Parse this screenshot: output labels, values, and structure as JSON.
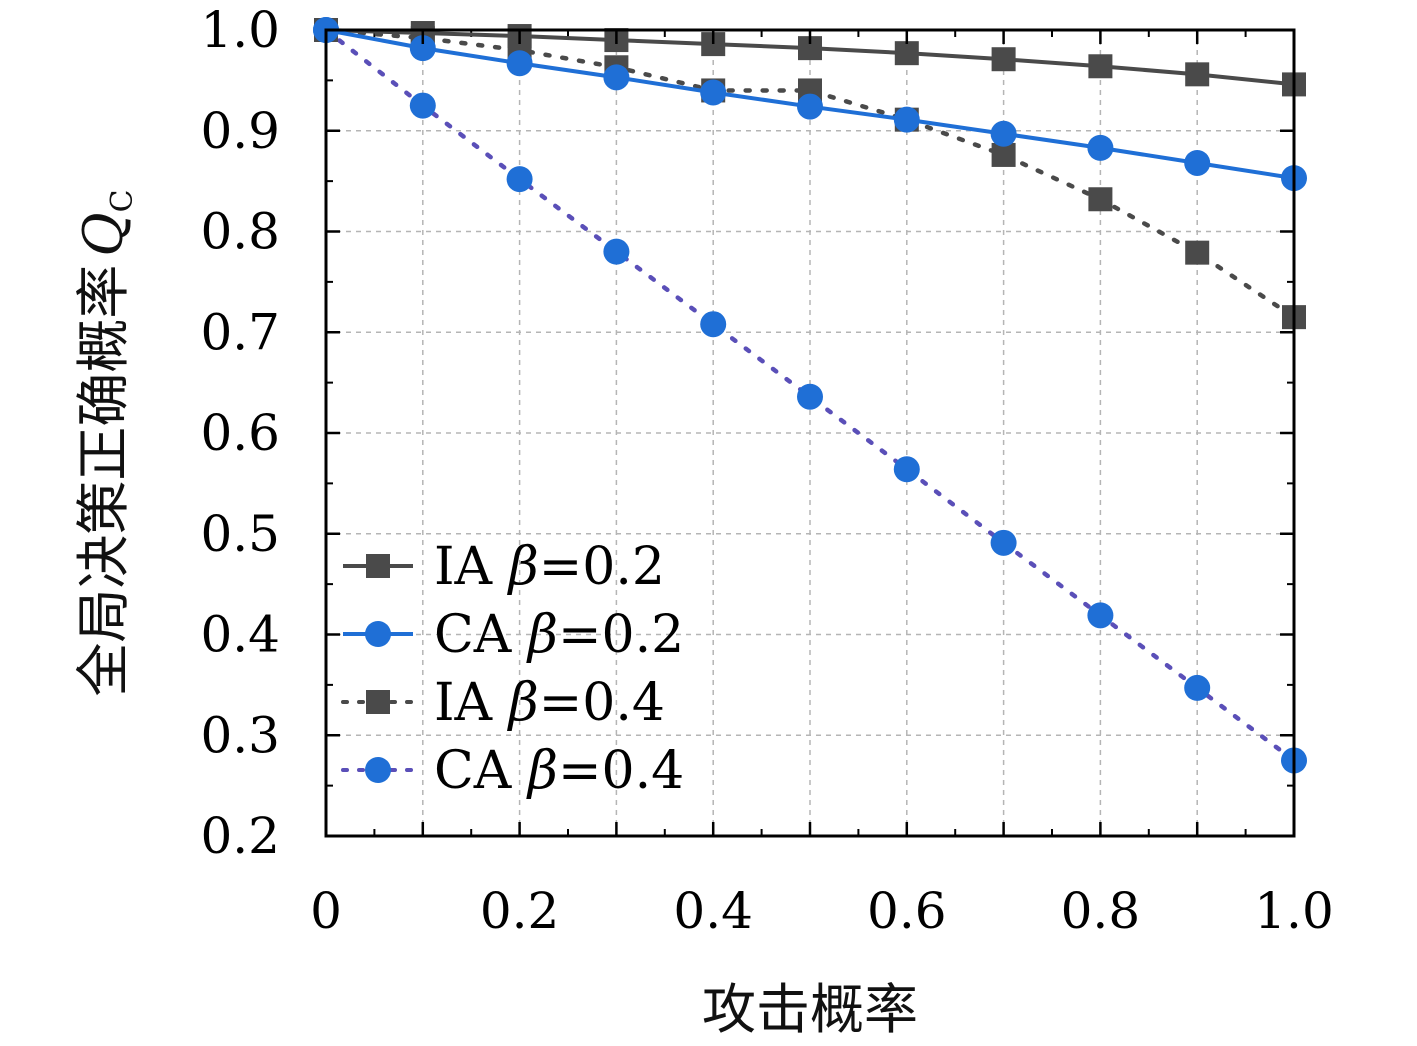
{
  "chart_data": {
    "type": "line",
    "title": "",
    "xlabel": "攻击概率",
    "ylabel": "全局决策正确概率",
    "ylabel_symbol": "Q",
    "ylabel_subscript": "C",
    "xlim": [
      0,
      1.0
    ],
    "ylim": [
      0.2,
      1.0
    ],
    "xticks": [
      "0",
      "0.2",
      "0.4",
      "0.6",
      "0.8",
      "1.0"
    ],
    "yticks": [
      "0.2",
      "0.3",
      "0.4",
      "0.5",
      "0.6",
      "0.7",
      "0.8",
      "0.9",
      "1.0"
    ],
    "grid": true,
    "legend_position": "bottom-left",
    "x": [
      0,
      0.1,
      0.2,
      0.3,
      0.4,
      0.5,
      0.6,
      0.7,
      0.8,
      0.9,
      1.0
    ],
    "series": [
      {
        "name": "IA β=0.2",
        "label_prefix": "IA",
        "label_symbol": "β",
        "label_value": "=0.2",
        "marker": "square",
        "line": "solid",
        "color": "#4a4a4a",
        "values": [
          1.0,
          0.997,
          0.994,
          0.99,
          0.986,
          0.982,
          0.977,
          0.971,
          0.964,
          0.956,
          0.946
        ]
      },
      {
        "name": "CA β=0.2",
        "label_prefix": "CA",
        "label_symbol": "β",
        "label_value": "=0.2",
        "marker": "circle",
        "line": "solid",
        "color": "#1f6fd6",
        "values": [
          1.0,
          0.982,
          0.967,
          0.953,
          0.938,
          0.924,
          0.911,
          0.897,
          0.883,
          0.868,
          0.853
        ]
      },
      {
        "name": "IA β=0.4",
        "label_prefix": "IA",
        "label_symbol": "β",
        "label_value": "=0.4",
        "marker": "square",
        "line": "dotted",
        "color": "#4a4a4a",
        "values": [
          1.0,
          0.992,
          0.98,
          0.963,
          0.94,
          0.94,
          0.911,
          0.876,
          0.832,
          0.779,
          0.715
        ]
      },
      {
        "name": "CA β=0.4",
        "label_prefix": "CA",
        "label_symbol": "β",
        "label_value": "=0.4",
        "marker": "circle",
        "line": "dotted",
        "color": "#1f6fd6",
        "line_color": "#5a4fb8",
        "values": [
          1.0,
          0.925,
          0.852,
          0.78,
          0.708,
          0.636,
          0.564,
          0.491,
          0.419,
          0.347,
          0.275
        ]
      }
    ]
  }
}
